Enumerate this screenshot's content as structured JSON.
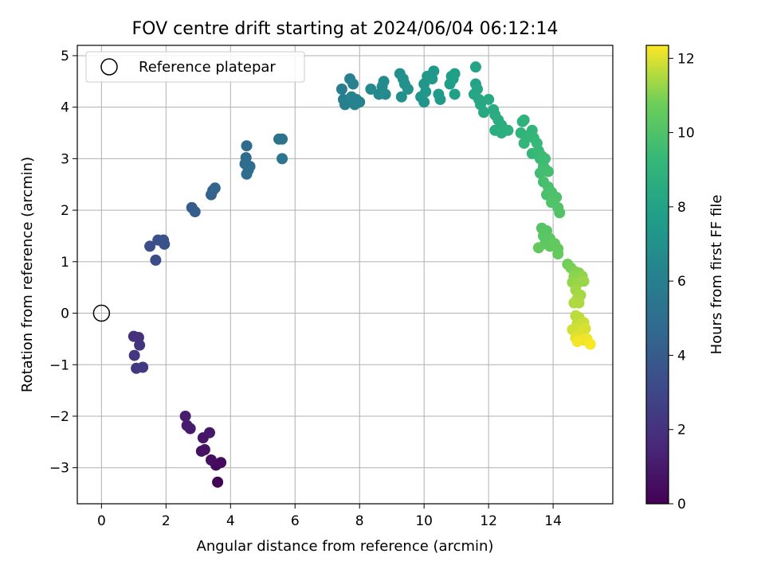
{
  "chart_data": {
    "type": "scatter",
    "title": "FOV centre drift starting at 2024/06/04 06:12:14",
    "xlabel": "Angular distance from reference (arcmin)",
    "ylabel": "Rotation from reference (arcmin)",
    "xlim": [
      -0.75,
      15.85
    ],
    "ylim": [
      -3.7,
      5.2
    ],
    "xticks": [
      0,
      2,
      4,
      6,
      8,
      10,
      12,
      14
    ],
    "yticks": [
      -3,
      -2,
      -1,
      0,
      1,
      2,
      3,
      4,
      5
    ],
    "grid": true,
    "legend": {
      "position": "top-left",
      "entries": [
        "Reference platepar"
      ]
    },
    "reference_point": {
      "x": 0,
      "y": 0,
      "label": "Reference platepar"
    },
    "colorbar": {
      "label": "Hours from first FF file",
      "colormap": "viridis",
      "range": [
        0,
        12.35
      ],
      "ticks": [
        0,
        2,
        4,
        6,
        8,
        10,
        12
      ]
    },
    "series": [
      {
        "points": [
          {
            "x": 3.6,
            "y": -3.28,
            "c": 0.1
          },
          {
            "x": 3.55,
            "y": -2.95,
            "c": 0.3
          },
          {
            "x": 3.7,
            "y": -2.9,
            "c": 0.4
          },
          {
            "x": 3.4,
            "y": -2.85,
            "c": 0.5
          },
          {
            "x": 3.1,
            "y": -2.68,
            "c": 0.6
          },
          {
            "x": 3.2,
            "y": -2.65,
            "c": 0.7
          },
          {
            "x": 3.15,
            "y": -2.42,
            "c": 0.8
          },
          {
            "x": 3.35,
            "y": -2.32,
            "c": 0.9
          },
          {
            "x": 2.75,
            "y": -2.24,
            "c": 1.0
          },
          {
            "x": 2.65,
            "y": -2.18,
            "c": 1.05
          },
          {
            "x": 2.6,
            "y": -2.0,
            "c": 1.1
          },
          {
            "x": 1.0,
            "y": -0.45,
            "c": 1.9
          },
          {
            "x": 1.15,
            "y": -0.47,
            "c": 2.0
          },
          {
            "x": 1.18,
            "y": -0.62,
            "c": 2.1
          },
          {
            "x": 1.02,
            "y": -0.82,
            "c": 2.2
          },
          {
            "x": 1.08,
            "y": -1.07,
            "c": 2.3
          },
          {
            "x": 1.28,
            "y": -1.05,
            "c": 2.4
          },
          {
            "x": 1.68,
            "y": 1.03,
            "c": 3.2
          },
          {
            "x": 1.5,
            "y": 1.3,
            "c": 3.3
          },
          {
            "x": 1.75,
            "y": 1.42,
            "c": 3.4
          },
          {
            "x": 1.92,
            "y": 1.42,
            "c": 3.5
          },
          {
            "x": 1.95,
            "y": 1.34,
            "c": 3.55
          },
          {
            "x": 2.8,
            "y": 2.05,
            "c": 4.0
          },
          {
            "x": 2.9,
            "y": 1.97,
            "c": 4.1
          },
          {
            "x": 3.4,
            "y": 2.3,
            "c": 4.4
          },
          {
            "x": 3.45,
            "y": 2.38,
            "c": 4.45
          },
          {
            "x": 3.52,
            "y": 2.43,
            "c": 4.5
          },
          {
            "x": 4.5,
            "y": 3.25,
            "c": 4.8
          },
          {
            "x": 4.48,
            "y": 3.02,
            "c": 4.85
          },
          {
            "x": 4.45,
            "y": 2.9,
            "c": 4.9
          },
          {
            "x": 4.6,
            "y": 2.85,
            "c": 4.95
          },
          {
            "x": 4.55,
            "y": 2.78,
            "c": 5.0
          },
          {
            "x": 4.5,
            "y": 2.7,
            "c": 5.0
          },
          {
            "x": 5.5,
            "y": 3.38,
            "c": 5.3
          },
          {
            "x": 5.6,
            "y": 3.38,
            "c": 5.35
          },
          {
            "x": 5.6,
            "y": 3.0,
            "c": 5.4
          },
          {
            "x": 7.45,
            "y": 4.35,
            "c": 5.9
          },
          {
            "x": 7.5,
            "y": 4.15,
            "c": 5.95
          },
          {
            "x": 7.55,
            "y": 4.05,
            "c": 6.0
          },
          {
            "x": 7.7,
            "y": 4.55,
            "c": 6.05
          },
          {
            "x": 7.8,
            "y": 4.45,
            "c": 6.1
          },
          {
            "x": 7.85,
            "y": 4.05,
            "c": 6.15
          },
          {
            "x": 7.9,
            "y": 4.15,
            "c": 6.2
          },
          {
            "x": 8.0,
            "y": 4.1,
            "c": 6.25
          },
          {
            "x": 7.75,
            "y": 4.2,
            "c": 6.25
          },
          {
            "x": 8.35,
            "y": 4.35,
            "c": 6.5
          },
          {
            "x": 8.6,
            "y": 4.25,
            "c": 6.55
          },
          {
            "x": 8.7,
            "y": 4.4,
            "c": 6.6
          },
          {
            "x": 8.75,
            "y": 4.5,
            "c": 6.65
          },
          {
            "x": 8.8,
            "y": 4.25,
            "c": 6.7
          },
          {
            "x": 9.25,
            "y": 4.65,
            "c": 6.9
          },
          {
            "x": 9.3,
            "y": 4.2,
            "c": 6.95
          },
          {
            "x": 9.4,
            "y": 4.45,
            "c": 7.0
          },
          {
            "x": 9.5,
            "y": 4.35,
            "c": 7.05
          },
          {
            "x": 9.35,
            "y": 4.55,
            "c": 7.0
          },
          {
            "x": 9.9,
            "y": 4.2,
            "c": 7.2
          },
          {
            "x": 10.0,
            "y": 4.1,
            "c": 7.25
          },
          {
            "x": 10.0,
            "y": 4.45,
            "c": 7.3
          },
          {
            "x": 10.05,
            "y": 4.3,
            "c": 7.35
          },
          {
            "x": 10.1,
            "y": 4.6,
            "c": 7.35
          },
          {
            "x": 10.25,
            "y": 4.55,
            "c": 7.4
          },
          {
            "x": 10.3,
            "y": 4.7,
            "c": 7.45
          },
          {
            "x": 10.45,
            "y": 4.25,
            "c": 7.5
          },
          {
            "x": 10.5,
            "y": 4.15,
            "c": 7.55
          },
          {
            "x": 10.8,
            "y": 4.45,
            "c": 7.7
          },
          {
            "x": 10.85,
            "y": 4.6,
            "c": 7.75
          },
          {
            "x": 10.9,
            "y": 4.55,
            "c": 7.8
          },
          {
            "x": 10.95,
            "y": 4.65,
            "c": 7.85
          },
          {
            "x": 10.95,
            "y": 4.25,
            "c": 7.85
          },
          {
            "x": 11.6,
            "y": 4.78,
            "c": 8.1
          },
          {
            "x": 11.6,
            "y": 4.45,
            "c": 8.1
          },
          {
            "x": 11.65,
            "y": 4.35,
            "c": 8.15
          },
          {
            "x": 11.55,
            "y": 4.25,
            "c": 8.2
          },
          {
            "x": 11.7,
            "y": 4.15,
            "c": 8.25
          },
          {
            "x": 11.75,
            "y": 4.05,
            "c": 8.3
          },
          {
            "x": 11.85,
            "y": 3.9,
            "c": 8.35
          },
          {
            "x": 12.0,
            "y": 4.15,
            "c": 8.4
          },
          {
            "x": 12.15,
            "y": 3.95,
            "c": 8.5
          },
          {
            "x": 12.2,
            "y": 3.85,
            "c": 8.55
          },
          {
            "x": 12.3,
            "y": 3.75,
            "c": 8.6
          },
          {
            "x": 12.4,
            "y": 3.65,
            "c": 8.65
          },
          {
            "x": 12.2,
            "y": 3.55,
            "c": 8.65
          },
          {
            "x": 12.4,
            "y": 3.5,
            "c": 8.7
          },
          {
            "x": 12.6,
            "y": 3.55,
            "c": 8.75
          },
          {
            "x": 13.05,
            "y": 3.72,
            "c": 8.9
          },
          {
            "x": 13.1,
            "y": 3.75,
            "c": 8.95
          },
          {
            "x": 13.0,
            "y": 3.5,
            "c": 9.0
          },
          {
            "x": 13.1,
            "y": 3.3,
            "c": 9.05
          },
          {
            "x": 13.25,
            "y": 3.45,
            "c": 9.1
          },
          {
            "x": 13.35,
            "y": 3.55,
            "c": 9.15
          },
          {
            "x": 13.4,
            "y": 3.4,
            "c": 9.2
          },
          {
            "x": 13.35,
            "y": 3.1,
            "c": 9.25
          },
          {
            "x": 13.5,
            "y": 3.3,
            "c": 9.3
          },
          {
            "x": 13.55,
            "y": 3.15,
            "c": 9.35
          },
          {
            "x": 13.6,
            "y": 3.0,
            "c": 9.4
          },
          {
            "x": 13.65,
            "y": 3.05,
            "c": 9.45
          },
          {
            "x": 13.75,
            "y": 3.0,
            "c": 9.5
          },
          {
            "x": 13.7,
            "y": 2.85,
            "c": 9.55
          },
          {
            "x": 13.6,
            "y": 2.72,
            "c": 9.6
          },
          {
            "x": 13.75,
            "y": 2.8,
            "c": 9.65
          },
          {
            "x": 13.85,
            "y": 2.75,
            "c": 9.7
          },
          {
            "x": 13.7,
            "y": 2.55,
            "c": 9.75
          },
          {
            "x": 13.85,
            "y": 2.45,
            "c": 9.8
          },
          {
            "x": 13.8,
            "y": 2.3,
            "c": 9.85
          },
          {
            "x": 13.95,
            "y": 2.35,
            "c": 9.9
          },
          {
            "x": 14.1,
            "y": 2.25,
            "c": 9.95
          },
          {
            "x": 13.95,
            "y": 2.15,
            "c": 10.0
          },
          {
            "x": 14.15,
            "y": 2.05,
            "c": 10.05
          },
          {
            "x": 14.2,
            "y": 1.95,
            "c": 10.1
          },
          {
            "x": 13.65,
            "y": 1.65,
            "c": 10.15
          },
          {
            "x": 13.8,
            "y": 1.6,
            "c": 10.2
          },
          {
            "x": 13.7,
            "y": 1.5,
            "c": 10.25
          },
          {
            "x": 13.9,
            "y": 1.45,
            "c": 10.3
          },
          {
            "x": 13.75,
            "y": 1.35,
            "c": 10.35
          },
          {
            "x": 13.9,
            "y": 1.3,
            "c": 10.4
          },
          {
            "x": 14.05,
            "y": 1.35,
            "c": 10.45
          },
          {
            "x": 14.15,
            "y": 1.25,
            "c": 10.5
          },
          {
            "x": 13.55,
            "y": 1.27,
            "c": 10.5
          },
          {
            "x": 14.15,
            "y": 1.15,
            "c": 10.55
          },
          {
            "x": 14.45,
            "y": 0.95,
            "c": 10.8
          },
          {
            "x": 14.55,
            "y": 0.88,
            "c": 10.9
          },
          {
            "x": 14.7,
            "y": 0.8,
            "c": 11.0
          },
          {
            "x": 14.8,
            "y": 0.78,
            "c": 11.05
          },
          {
            "x": 14.65,
            "y": 0.72,
            "c": 11.1
          },
          {
            "x": 14.9,
            "y": 0.72,
            "c": 11.15
          },
          {
            "x": 14.6,
            "y": 0.6,
            "c": 11.2
          },
          {
            "x": 14.75,
            "y": 0.58,
            "c": 11.25
          },
          {
            "x": 14.95,
            "y": 0.62,
            "c": 11.3
          },
          {
            "x": 14.7,
            "y": 0.45,
            "c": 11.35
          },
          {
            "x": 14.85,
            "y": 0.35,
            "c": 11.4
          },
          {
            "x": 14.75,
            "y": 0.28,
            "c": 11.45
          },
          {
            "x": 14.8,
            "y": 0.2,
            "c": 11.5
          },
          {
            "x": 14.65,
            "y": 0.2,
            "c": 11.5
          },
          {
            "x": 14.7,
            "y": -0.05,
            "c": 11.6
          },
          {
            "x": 14.8,
            "y": -0.08,
            "c": 11.65
          },
          {
            "x": 14.75,
            "y": -0.2,
            "c": 11.7
          },
          {
            "x": 14.85,
            "y": -0.22,
            "c": 11.75
          },
          {
            "x": 14.95,
            "y": -0.18,
            "c": 11.8
          },
          {
            "x": 14.7,
            "y": -0.3,
            "c": 11.85
          },
          {
            "x": 14.6,
            "y": -0.32,
            "c": 11.85
          },
          {
            "x": 14.9,
            "y": -0.35,
            "c": 11.9
          },
          {
            "x": 15.0,
            "y": -0.3,
            "c": 11.95
          },
          {
            "x": 14.8,
            "y": -0.42,
            "c": 12.0
          },
          {
            "x": 14.7,
            "y": -0.48,
            "c": 12.05
          },
          {
            "x": 14.85,
            "y": -0.5,
            "c": 12.1
          },
          {
            "x": 14.95,
            "y": -0.52,
            "c": 12.15
          },
          {
            "x": 15.05,
            "y": -0.5,
            "c": 12.2
          },
          {
            "x": 15.15,
            "y": -0.6,
            "c": 12.3
          },
          {
            "x": 14.75,
            "y": -0.55,
            "c": 12.25
          }
        ]
      }
    ]
  }
}
